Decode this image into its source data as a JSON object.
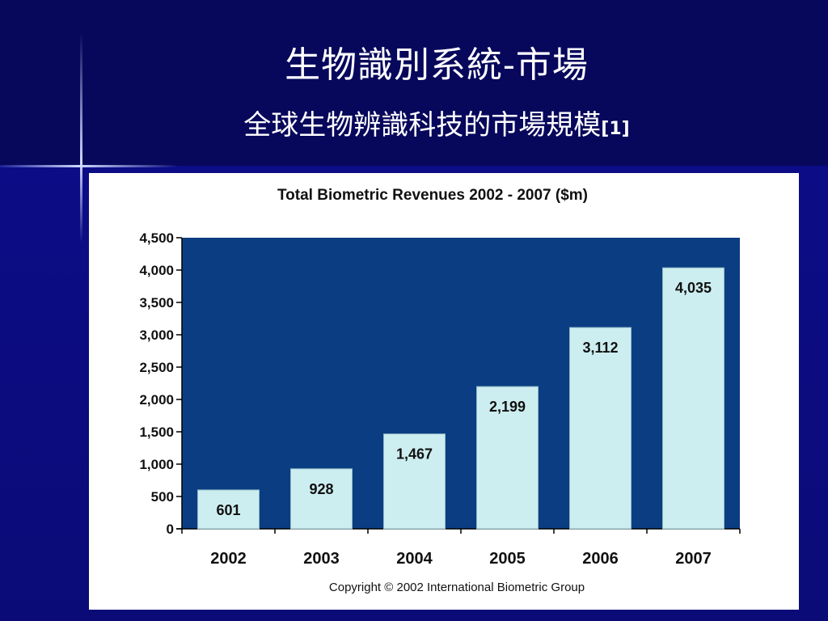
{
  "slide": {
    "title": "生物識別系統-市場",
    "subtitle": "全球生物辨識科技的市場規模",
    "subtitle_ref": "[1]"
  },
  "chart_data": {
    "type": "bar",
    "title": "Total Biometric Revenues 2002 - 2007 ($m)",
    "categories": [
      "2002",
      "2003",
      "2004",
      "2005",
      "2006",
      "2007"
    ],
    "values": [
      601,
      928,
      1467,
      2199,
      3112,
      4035
    ],
    "value_labels": [
      "601",
      "928",
      "1,467",
      "2,199",
      "3,112",
      "4,035"
    ],
    "yticks": [
      "0",
      "500",
      "1,000",
      "1,500",
      "2,000",
      "2,500",
      "3,000",
      "3,500",
      "4,000",
      "4,500"
    ],
    "ylim": [
      0,
      4500
    ],
    "grid": false,
    "legend": "none",
    "footer": "Copyright © 2002 International Biometric Group",
    "colors": {
      "plot_background": "#0b3d82",
      "bar_fill": "#cdeef0",
      "bar_stroke": "#8fb8c4",
      "text": "#111111"
    }
  }
}
